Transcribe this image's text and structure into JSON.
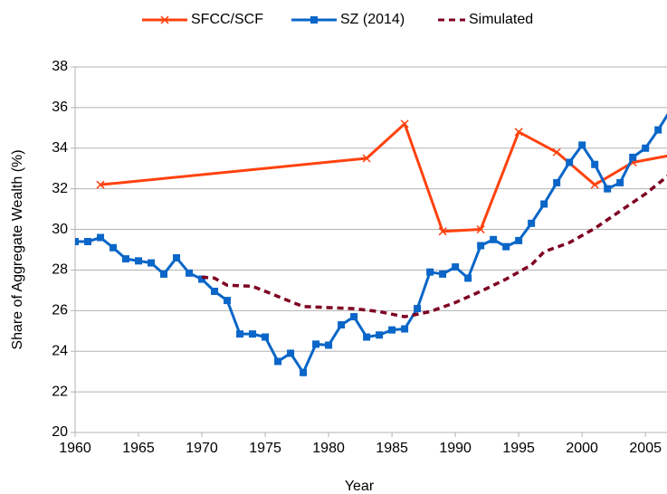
{
  "chart_data": {
    "type": "line",
    "xlabel": "Year",
    "ylabel": "Share of Aggregate Wealth (%)",
    "xlim": [
      1960,
      2006.7
    ],
    "xticks": [
      1960,
      1965,
      1970,
      1975,
      1980,
      1985,
      1990,
      1995,
      2000,
      2005
    ],
    "ylim": [
      20,
      38
    ],
    "yticks": [
      20,
      22,
      24,
      26,
      28,
      30,
      32,
      34,
      36,
      38
    ],
    "grid": true,
    "legend": "top",
    "series": [
      {
        "name": "SFCC/SCF",
        "color": "#ff420e",
        "marker": "x",
        "dash": false,
        "x": [
          1962,
          1983,
          1986,
          1989,
          1992,
          1995,
          1998,
          2001,
          2004,
          2007
        ],
        "values": [
          32.2,
          33.5,
          35.2,
          29.9,
          30.0,
          34.8,
          33.8,
          32.2,
          33.3,
          33.65
        ]
      },
      {
        "name": "SZ (2014)",
        "color": "#0a66c8",
        "marker": "square",
        "dash": false,
        "x": [
          1960,
          1961,
          1962,
          1963,
          1964,
          1965,
          1966,
          1967,
          1968,
          1969,
          1970,
          1971,
          1972,
          1973,
          1974,
          1975,
          1976,
          1977,
          1978,
          1979,
          1980,
          1981,
          1982,
          1983,
          1984,
          1985,
          1986,
          1987,
          1988,
          1989,
          1990,
          1991,
          1992,
          1993,
          1994,
          1995,
          1996,
          1997,
          1998,
          1999,
          2000,
          2001,
          2002,
          2003,
          2004,
          2005,
          2006,
          2007
        ],
        "values": [
          29.4,
          29.4,
          29.6,
          29.1,
          28.55,
          28.45,
          28.35,
          27.8,
          28.6,
          27.85,
          27.55,
          26.95,
          26.5,
          24.85,
          24.85,
          24.7,
          23.5,
          23.9,
          22.95,
          24.35,
          24.3,
          25.3,
          25.7,
          24.7,
          24.8,
          25.05,
          25.1,
          26.1,
          27.9,
          27.8,
          28.15,
          27.6,
          29.2,
          29.5,
          29.15,
          29.45,
          30.3,
          31.25,
          32.3,
          33.3,
          34.15,
          33.2,
          32.0,
          32.3,
          33.55,
          34.0,
          34.9,
          35.9
        ]
      },
      {
        "name": "Simulated",
        "color": "#7e0021",
        "marker": "none",
        "dash": true,
        "x": [
          1970,
          1971,
          1972,
          1974,
          1976,
          1978,
          1980,
          1982,
          1984,
          1986,
          1988,
          1990,
          1992,
          1994,
          1996,
          1997,
          1999,
          2001,
          2003,
          2005,
          2007
        ],
        "values": [
          27.65,
          27.6,
          27.25,
          27.2,
          26.7,
          26.2,
          26.15,
          26.1,
          25.95,
          25.7,
          25.95,
          26.4,
          26.95,
          27.55,
          28.25,
          28.9,
          29.35,
          30.05,
          30.9,
          31.75,
          32.75
        ]
      }
    ]
  }
}
